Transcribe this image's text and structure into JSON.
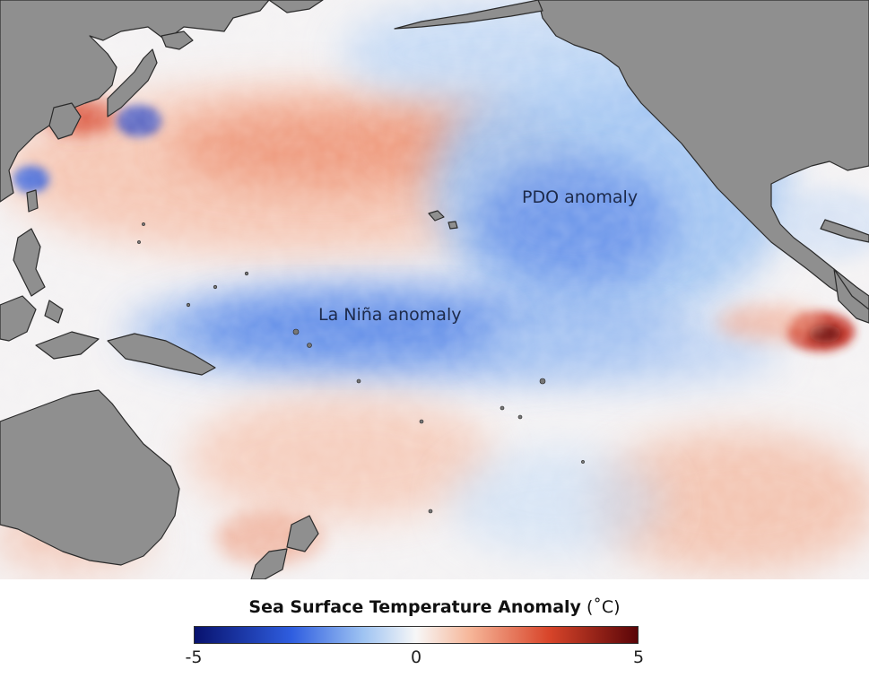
{
  "map": {
    "annotations": {
      "pdo": "PDO anomaly",
      "la_nina": "La Niña anomaly"
    }
  },
  "legend": {
    "title": "Sea Surface Temperature Anomaly",
    "unit": "(˚C)",
    "ticks": [
      "-5",
      "0",
      "5"
    ],
    "range": [
      -5,
      5
    ],
    "colors": {
      "cold_extreme": "#08126e",
      "cold": "#2f5ee0",
      "cool": "#9ec3f2",
      "neutral": "#f7f7f7",
      "warm": "#f6b79a",
      "hot": "#d8452a",
      "hot_extreme": "#5a0508",
      "land": "#8f8f8f"
    }
  }
}
